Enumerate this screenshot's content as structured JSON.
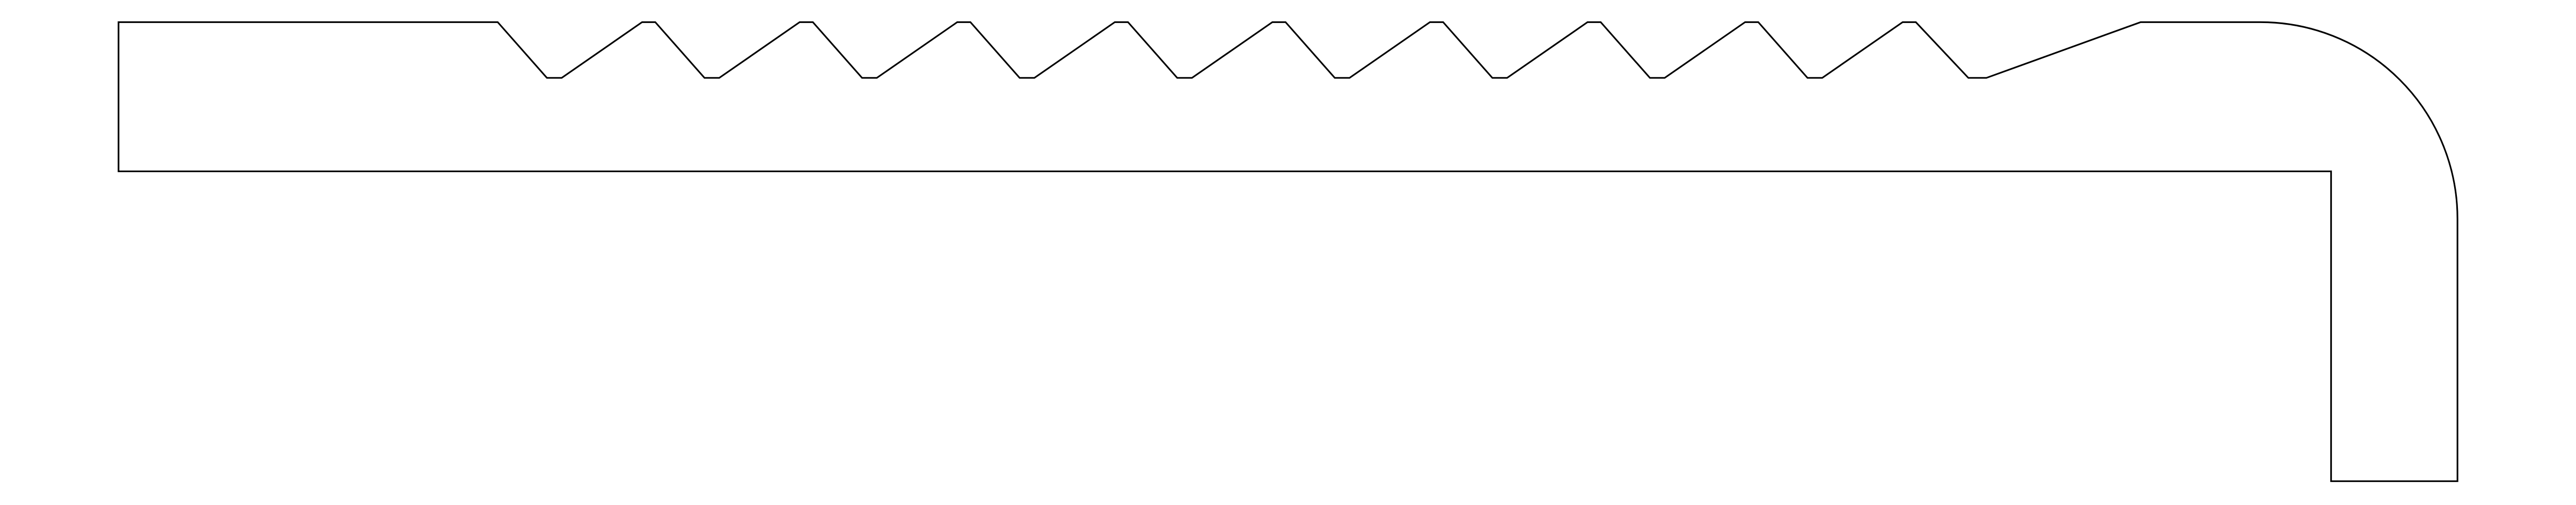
{
  "drawing": {
    "kind": "profile-outline",
    "stroke_color": "#000000",
    "fill_color": "none",
    "background_color": "#ffffff",
    "serration_tooth_count": 9
  }
}
